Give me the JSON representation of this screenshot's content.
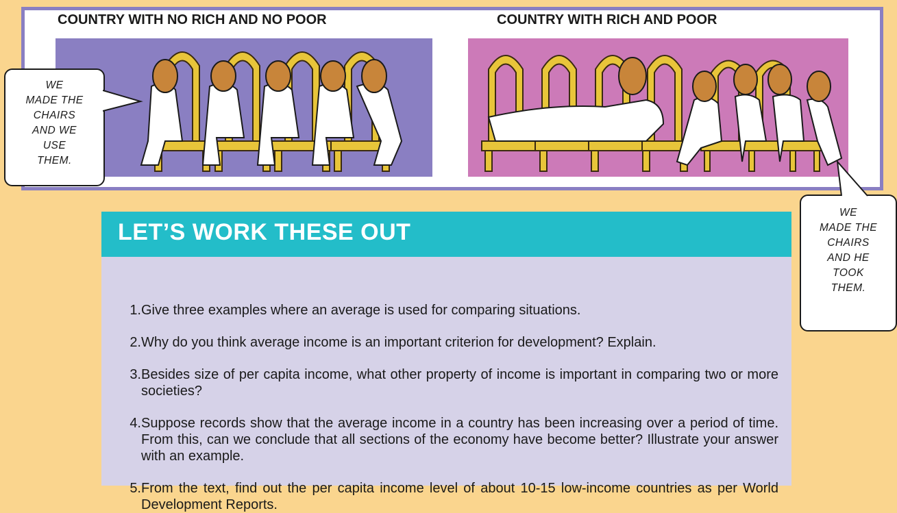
{
  "panel": {
    "left_caption": "COUNTRY WITH NO RICH AND NO POOR",
    "right_caption": "COUNTRY WITH RICH AND POOR",
    "left_image_alt": "",
    "colors": {
      "left_bg": "#8A7FC2",
      "right_bg": "#CC7AB8",
      "border": "#8A7FC2"
    }
  },
  "bubbles": {
    "left": [
      "WE",
      "MADE THE",
      "CHAIRS",
      "AND WE",
      "USE",
      "THEM."
    ],
    "right": [
      "WE",
      "MADE THE",
      "CHAIRS",
      "AND HE",
      "TOOK",
      "THEM."
    ]
  },
  "work": {
    "title": "LET’S WORK THESE OUT",
    "questions": [
      {
        "num": "1.",
        "text": "Give three examples where an average is used for comparing situations."
      },
      {
        "num": "2.",
        "text": "Why do you think average income is an important criterion for development? Explain."
      },
      {
        "num": "3.",
        "text": "Besides size of per capita income, what other property of income is important in comparing two or more societies?"
      },
      {
        "num": "4.",
        "text": "Suppose records show that the average income in a country has been increasing over a period of time. From this, can we conclude that all sections of the economy have become better? Illustrate your answer with an example."
      },
      {
        "num": "5.",
        "text": "From the text, find out the per capita income level of about 10-15 low-income countries as per World Development Reports."
      }
    ],
    "colors": {
      "header": "#23BDC9",
      "body": "#D6D2E8"
    }
  }
}
